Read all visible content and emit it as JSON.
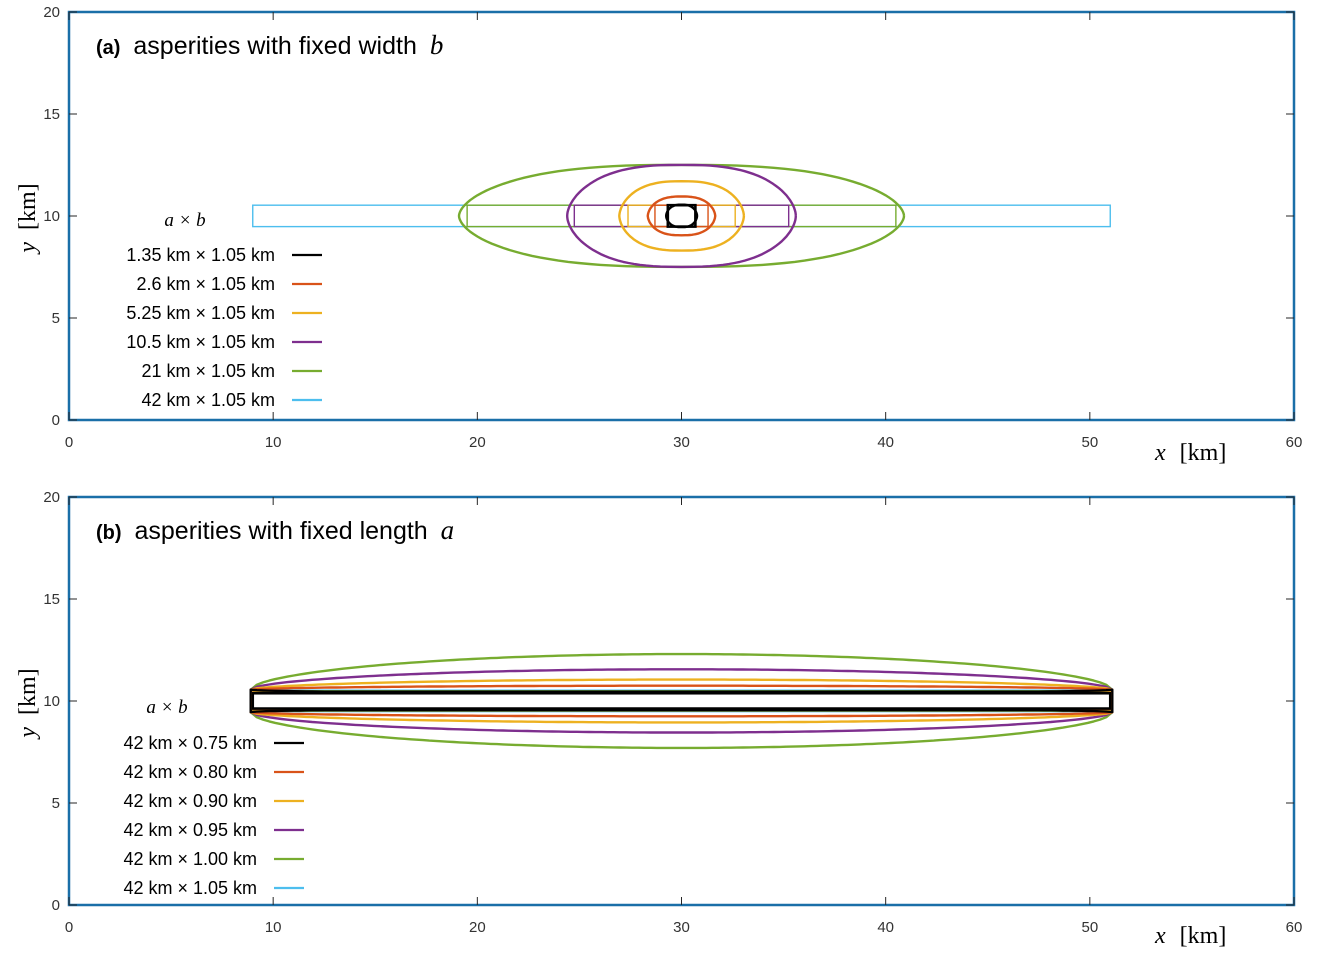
{
  "colors": {
    "axes_box": "#1a6fa8",
    "tick_text": "#333333",
    "series": [
      "#000000",
      "#d95319",
      "#edb120",
      "#7e2f8e",
      "#77ac30",
      "#4dbeee"
    ]
  },
  "chart_data": [
    {
      "type": "line",
      "panel_tag": "(a)",
      "title": "asperities with fixed width",
      "title_var": "b",
      "xlabel_var": "x",
      "xlabel_unit": "[km]",
      "ylabel_var": "y",
      "ylabel_unit": "[km]",
      "xlim": [
        0,
        60
      ],
      "ylim": [
        0,
        20
      ],
      "xticks": [
        0,
        10,
        20,
        30,
        40,
        50,
        60
      ],
      "yticks": [
        0,
        5,
        10,
        15,
        20
      ],
      "grid": false,
      "legend_title": "a × b",
      "legend_position": "left",
      "series": [
        {
          "name": "1.35 km × 1.05 km",
          "rect": [
            29.33,
            9.48,
            30.68,
            10.53
          ],
          "contour_rx": 0.68,
          "contour_ry": 0.55
        },
        {
          "name": "2.6 km × 1.05 km",
          "rect": [
            28.7,
            9.48,
            31.3,
            10.53
          ],
          "contour_rx": 1.65,
          "contour_ry": 0.95
        },
        {
          "name": "5.25 km × 1.05 km",
          "rect": [
            27.38,
            9.48,
            32.63,
            10.53
          ],
          "contour_rx": 3.05,
          "contour_ry": 1.7
        },
        {
          "name": "10.5 km × 1.05 km",
          "rect": [
            24.75,
            9.48,
            35.25,
            10.53
          ],
          "contour_rx": 5.6,
          "contour_ry": 2.5
        },
        {
          "name": "21 km × 1.05 km",
          "rect": [
            19.5,
            9.48,
            40.5,
            10.53
          ],
          "contour_rx": 10.9,
          "contour_ry": 2.5
        },
        {
          "name": "42 km × 1.05 km",
          "rect": [
            9.0,
            9.48,
            51.0,
            10.53
          ],
          "contour_rx": null,
          "contour_ry": null
        }
      ]
    },
    {
      "type": "line",
      "panel_tag": "(b)",
      "title": "asperities with fixed length",
      "title_var": "a",
      "xlabel_var": "x",
      "xlabel_unit": "[km]",
      "ylabel_var": "y",
      "ylabel_unit": "[km]",
      "xlim": [
        0,
        60
      ],
      "ylim": [
        0,
        20
      ],
      "xticks": [
        0,
        10,
        20,
        30,
        40,
        50,
        60
      ],
      "yticks": [
        0,
        5,
        10,
        15,
        20
      ],
      "grid": false,
      "legend_title": "a × b",
      "legend_position": "left",
      "series": [
        {
          "name": "42 km × 0.75 km",
          "rect": [
            9.0,
            9.63,
            51.0,
            10.38
          ],
          "contour_half_height": 0.36
        },
        {
          "name": "42 km × 0.80 km",
          "rect": [
            9.0,
            9.6,
            51.0,
            10.4
          ],
          "contour_half_height": 0.75
        },
        {
          "name": "42 km × 0.90 km",
          "rect": [
            9.0,
            9.55,
            51.0,
            10.45
          ],
          "contour_half_height": 1.05
        },
        {
          "name": "42 km × 0.95 km",
          "rect": [
            9.0,
            9.53,
            51.0,
            10.48
          ],
          "contour_half_height": 1.55
        },
        {
          "name": "42 km × 1.00 km",
          "rect": [
            9.0,
            9.5,
            51.0,
            10.5
          ],
          "contour_half_height": 2.3
        },
        {
          "name": "42 km × 1.05 km",
          "rect": [
            9.0,
            9.48,
            51.0,
            10.53
          ],
          "contour_half_height": null
        }
      ]
    }
  ]
}
